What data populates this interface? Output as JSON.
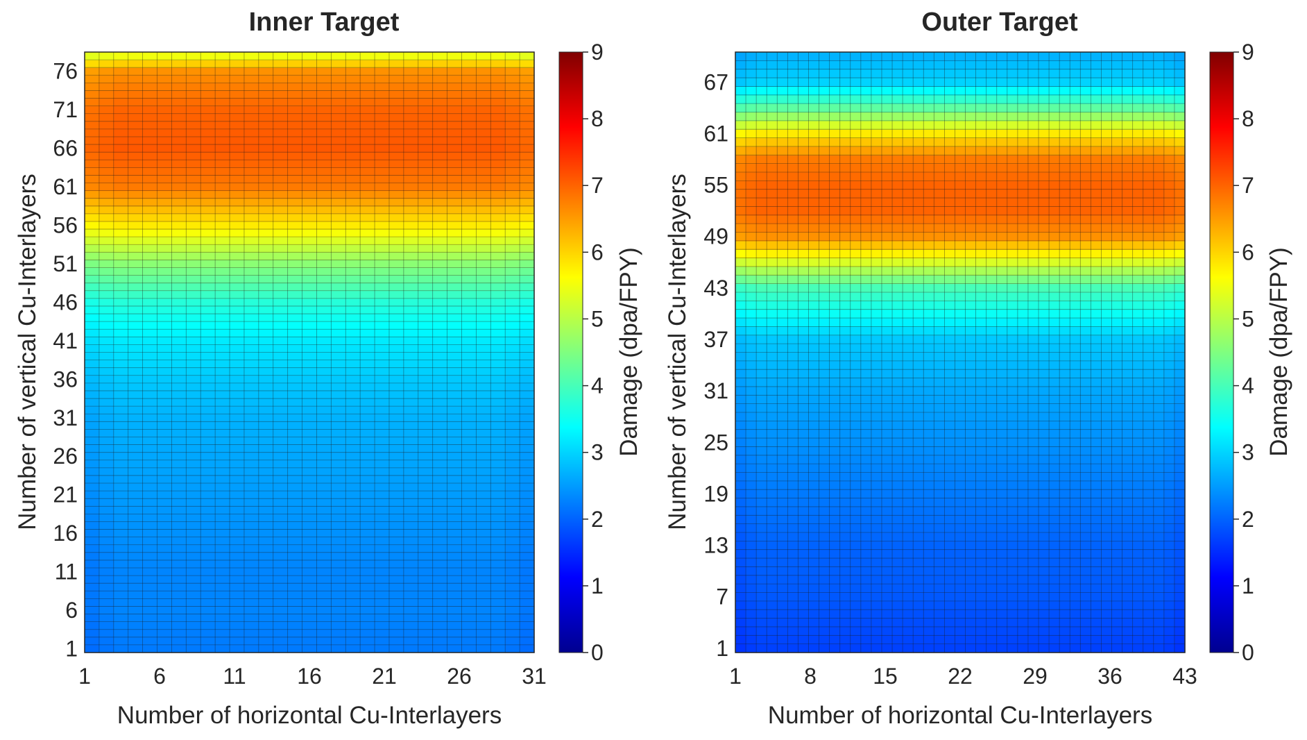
{
  "chart_data": [
    {
      "type": "heatmap",
      "title": "Inner Target",
      "xlabel": "Number of horizontal Cu-Interlayers",
      "ylabel": "Number of vertical Cu-Interlayers",
      "colorbar_label": "Damage (dpa/FPY)",
      "colormap": "jet",
      "x_range": [
        1,
        31
      ],
      "y_range": [
        1,
        78
      ],
      "x_ticks": [
        1,
        6,
        11,
        16,
        21,
        26,
        31
      ],
      "y_ticks": [
        1,
        6,
        11,
        16,
        21,
        26,
        31,
        36,
        41,
        46,
        51,
        56,
        61,
        66,
        71,
        76
      ],
      "clim": [
        0,
        9
      ],
      "colorbar_ticks": [
        0,
        1,
        2,
        3,
        4,
        5,
        6,
        7,
        8,
        9
      ],
      "grid": true,
      "damage_profile_vs_vertical": {
        "y": [
          1,
          6,
          11,
          16,
          21,
          26,
          31,
          36,
          41,
          46,
          51,
          56,
          61,
          66,
          71,
          76,
          78
        ],
        "value": [
          2.2,
          2.3,
          2.3,
          2.4,
          2.5,
          2.6,
          2.7,
          2.9,
          3.2,
          3.7,
          4.6,
          5.8,
          6.8,
          7.1,
          7.0,
          6.6,
          5.5
        ]
      },
      "edge_effect": "slightly lower damage at the first and last horizontal layers"
    },
    {
      "type": "heatmap",
      "title": "Outer Target",
      "xlabel": "Number of horizontal Cu-Interlayers",
      "ylabel": "Number of vertical Cu-Interlayers",
      "colorbar_label": "Damage (dpa/FPY)",
      "colormap": "jet",
      "x_range": [
        1,
        43
      ],
      "y_range": [
        1,
        70
      ],
      "x_ticks": [
        1,
        8,
        15,
        22,
        29,
        36,
        43
      ],
      "y_ticks": [
        1,
        7,
        13,
        19,
        25,
        31,
        37,
        43,
        49,
        55,
        61,
        67
      ],
      "clim": [
        0,
        9
      ],
      "colorbar_ticks": [
        0,
        1,
        2,
        3,
        4,
        5,
        6,
        7,
        8,
        9
      ],
      "grid": true,
      "damage_profile_vs_vertical": {
        "y": [
          1,
          7,
          13,
          19,
          25,
          31,
          37,
          43,
          46,
          49,
          52,
          55,
          58,
          61,
          64,
          67,
          70
        ],
        "value": [
          1.7,
          1.9,
          2.0,
          2.2,
          2.4,
          2.6,
          2.9,
          4.0,
          5.3,
          6.6,
          7.0,
          7.0,
          6.8,
          5.8,
          4.2,
          3.0,
          2.7
        ]
      },
      "edge_effect": "slightly lower damage at the first and last horizontal layers"
    }
  ]
}
